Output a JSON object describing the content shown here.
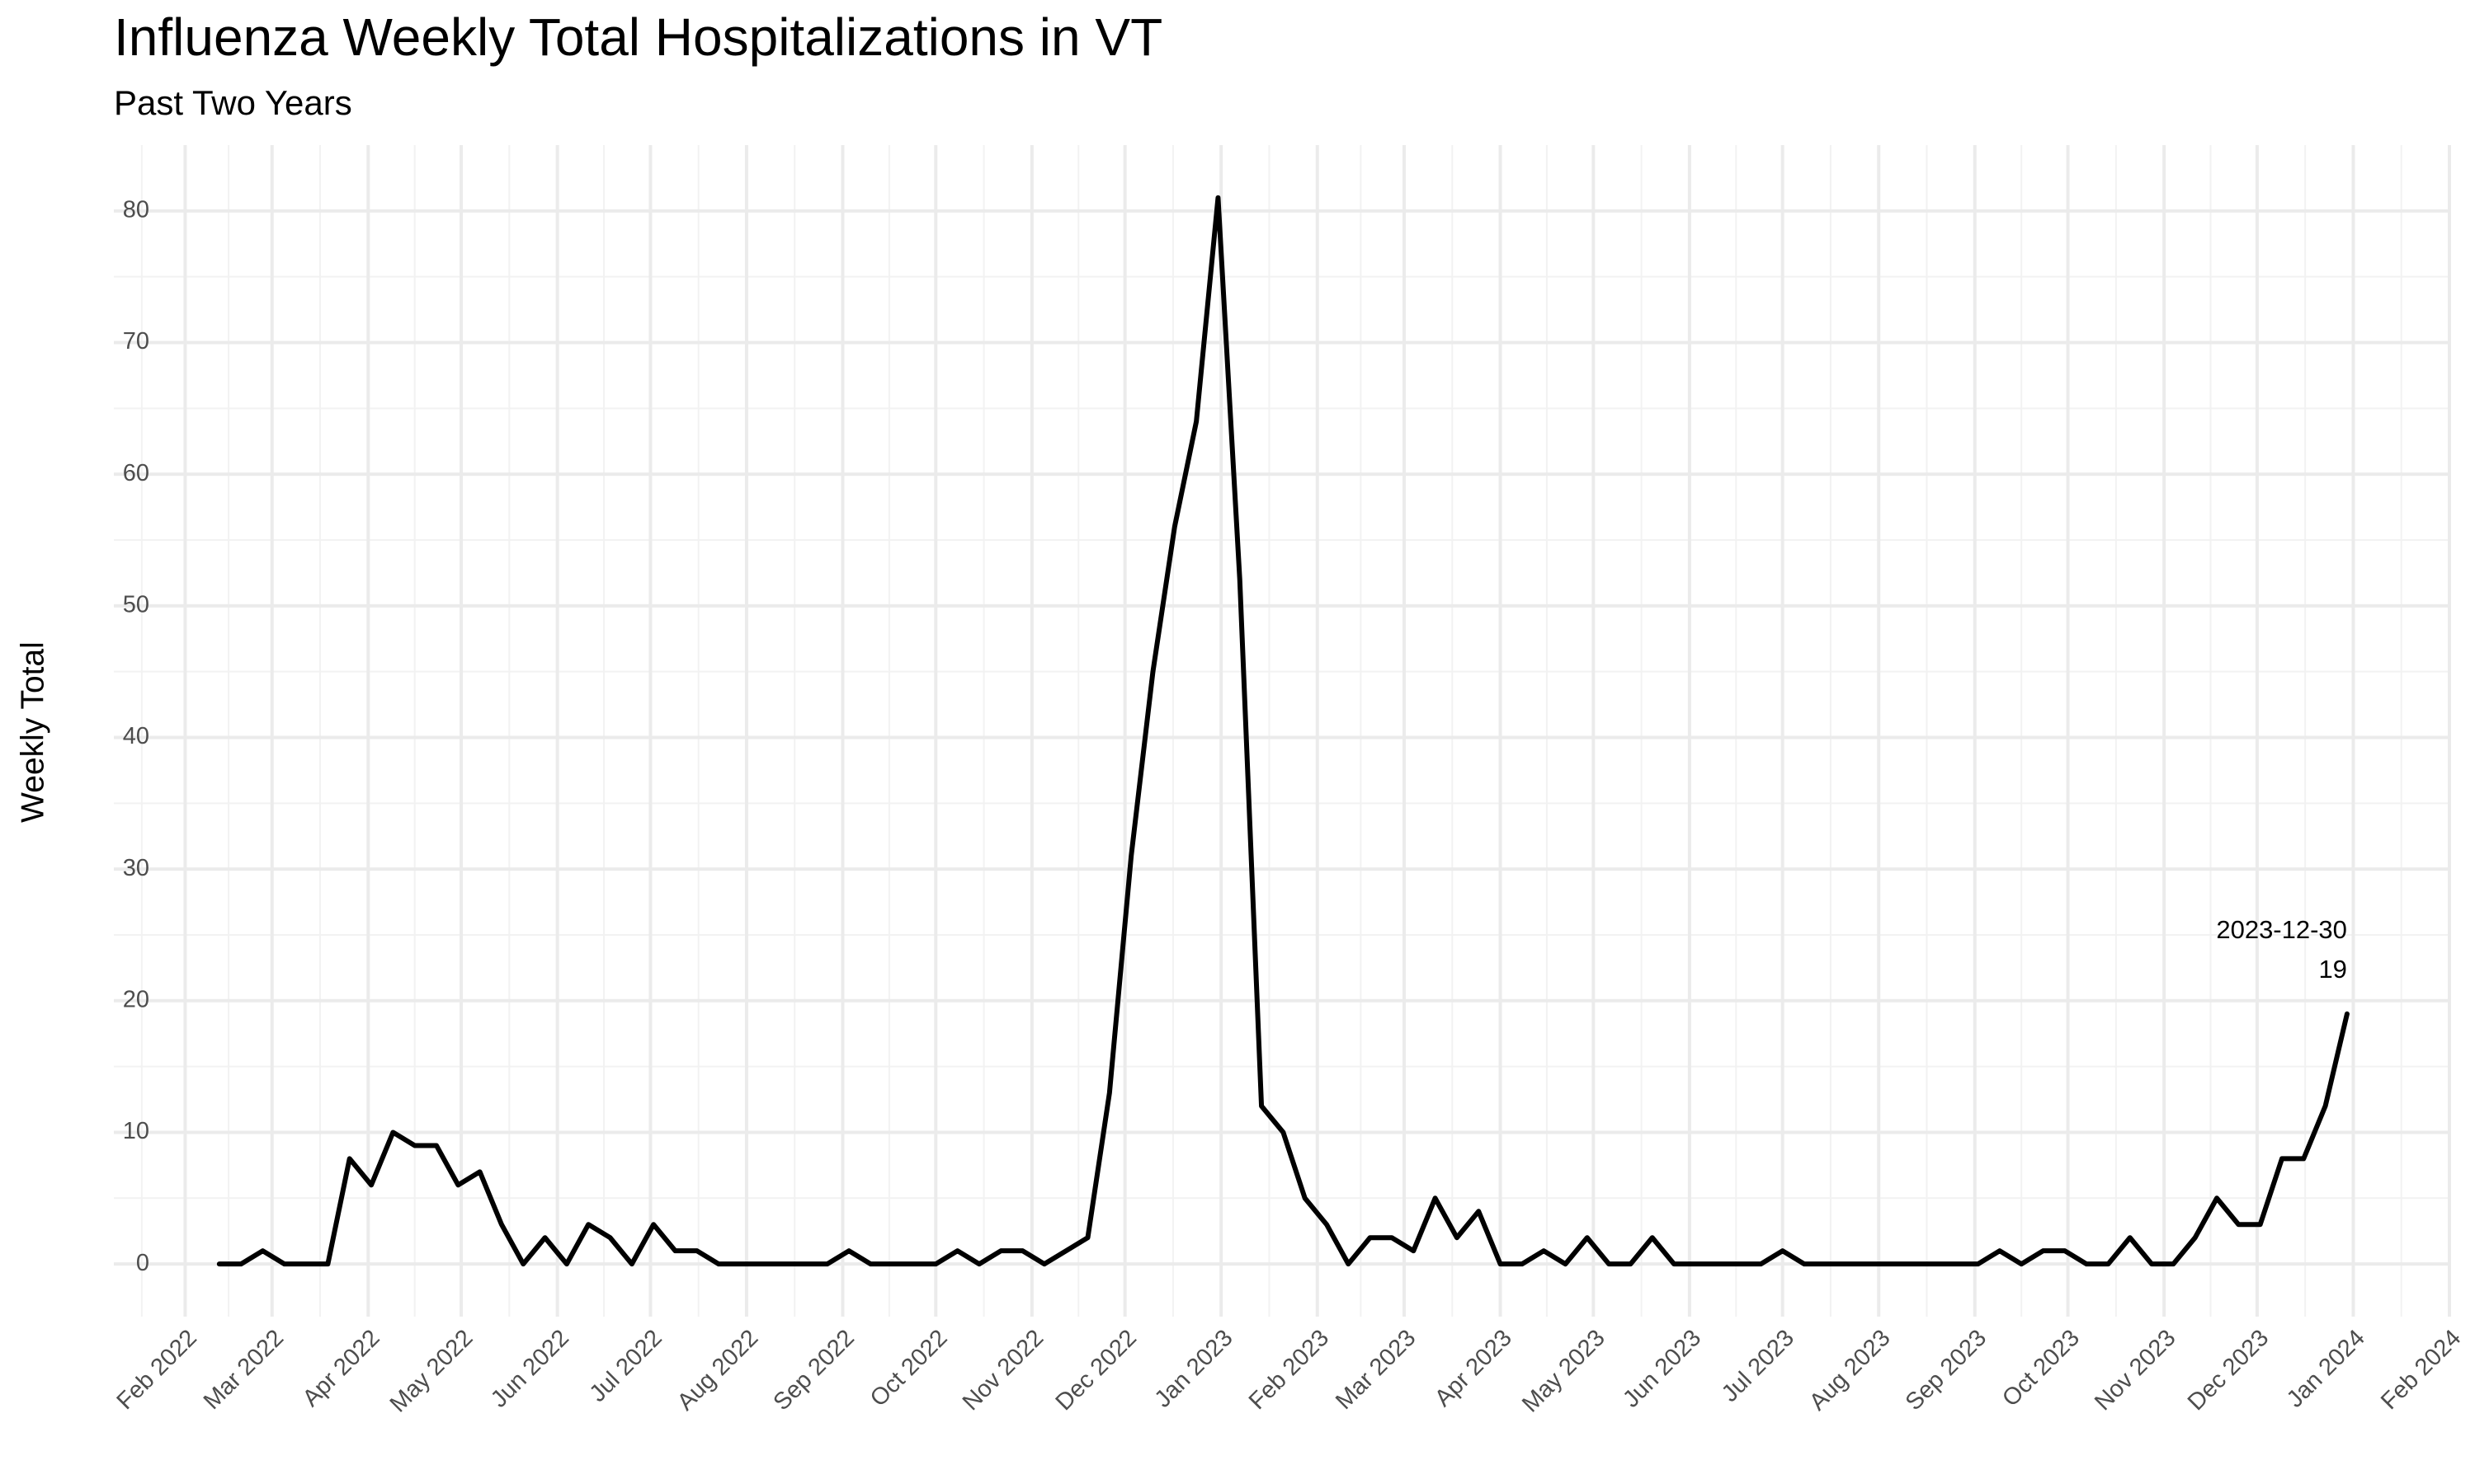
{
  "chart_data": {
    "type": "line",
    "title": "Influenza Weekly Total Hospitalizations in VT",
    "subtitle": "Past Two Years",
    "y_label": "Weekly Total",
    "x": [
      "2022-02-12",
      "2022-02-19",
      "2022-02-26",
      "2022-03-05",
      "2022-03-12",
      "2022-03-19",
      "2022-03-26",
      "2022-04-02",
      "2022-04-09",
      "2022-04-16",
      "2022-04-23",
      "2022-04-30",
      "2022-05-07",
      "2022-05-14",
      "2022-05-21",
      "2022-05-28",
      "2022-06-04",
      "2022-06-11",
      "2022-06-18",
      "2022-06-25",
      "2022-07-02",
      "2022-07-09",
      "2022-07-16",
      "2022-07-23",
      "2022-07-30",
      "2022-08-06",
      "2022-08-13",
      "2022-08-20",
      "2022-08-27",
      "2022-09-03",
      "2022-09-10",
      "2022-09-17",
      "2022-09-24",
      "2022-10-01",
      "2022-10-08",
      "2022-10-15",
      "2022-10-22",
      "2022-10-29",
      "2022-11-05",
      "2022-11-12",
      "2022-11-19",
      "2022-11-26",
      "2022-12-03",
      "2022-12-10",
      "2022-12-17",
      "2022-12-24",
      "2022-12-31",
      "2023-01-07",
      "2023-01-14",
      "2023-01-21",
      "2023-01-28",
      "2023-02-04",
      "2023-02-11",
      "2023-02-18",
      "2023-02-25",
      "2023-03-04",
      "2023-03-11",
      "2023-03-18",
      "2023-03-25",
      "2023-04-01",
      "2023-04-08",
      "2023-04-15",
      "2023-04-22",
      "2023-04-29",
      "2023-05-06",
      "2023-05-13",
      "2023-05-20",
      "2023-05-27",
      "2023-06-03",
      "2023-06-10",
      "2023-06-17",
      "2023-06-24",
      "2023-07-01",
      "2023-07-08",
      "2023-07-15",
      "2023-07-22",
      "2023-07-29",
      "2023-08-05",
      "2023-08-12",
      "2023-08-19",
      "2023-08-26",
      "2023-09-02",
      "2023-09-09",
      "2023-09-16",
      "2023-09-23",
      "2023-09-30",
      "2023-10-07",
      "2023-10-14",
      "2023-10-21",
      "2023-10-28",
      "2023-11-04",
      "2023-11-11",
      "2023-11-18",
      "2023-11-25",
      "2023-12-02",
      "2023-12-09",
      "2023-12-16",
      "2023-12-23",
      "2023-12-30"
    ],
    "series": [
      {
        "name": "Weekly Total",
        "color": "#000000",
        "values": [
          0,
          0,
          1,
          0,
          0,
          0,
          8,
          6,
          10,
          9,
          9,
          6,
          7,
          3,
          0,
          2,
          0,
          3,
          2,
          0,
          3,
          1,
          1,
          0,
          0,
          0,
          0,
          0,
          0,
          1,
          0,
          0,
          0,
          0,
          1,
          0,
          1,
          1,
          0,
          1,
          2,
          13,
          31,
          45,
          56,
          64,
          81,
          52,
          12,
          10,
          5,
          3,
          0,
          2,
          2,
          1,
          5,
          2,
          4,
          0,
          0,
          1,
          0,
          2,
          0,
          0,
          2,
          0,
          0,
          0,
          0,
          0,
          1,
          0,
          0,
          0,
          0,
          0,
          0,
          0,
          0,
          0,
          1,
          0,
          1,
          1,
          0,
          0,
          2,
          0,
          0,
          2,
          5,
          3,
          3,
          8,
          8,
          12,
          19
        ]
      }
    ],
    "xlim": [
      "2022-01-09",
      "2024-02-01"
    ],
    "xticks": [
      {
        "value": "2022-02-01",
        "label": "Feb 2022"
      },
      {
        "value": "2022-03-01",
        "label": "Mar 2022"
      },
      {
        "value": "2022-04-01",
        "label": "Apr 2022"
      },
      {
        "value": "2022-05-01",
        "label": "May 2022"
      },
      {
        "value": "2022-06-01",
        "label": "Jun 2022"
      },
      {
        "value": "2022-07-01",
        "label": "Jul 2022"
      },
      {
        "value": "2022-08-01",
        "label": "Aug 2022"
      },
      {
        "value": "2022-09-01",
        "label": "Sep 2022"
      },
      {
        "value": "2022-10-01",
        "label": "Oct 2022"
      },
      {
        "value": "2022-11-01",
        "label": "Nov 2022"
      },
      {
        "value": "2022-12-01",
        "label": "Dec 2022"
      },
      {
        "value": "2023-01-01",
        "label": "Jan 2023"
      },
      {
        "value": "2023-02-01",
        "label": "Feb 2023"
      },
      {
        "value": "2023-03-01",
        "label": "Mar 2023"
      },
      {
        "value": "2023-04-01",
        "label": "Apr 2023"
      },
      {
        "value": "2023-05-01",
        "label": "May 2023"
      },
      {
        "value": "2023-06-01",
        "label": "Jun 2023"
      },
      {
        "value": "2023-07-01",
        "label": "Jul 2023"
      },
      {
        "value": "2023-08-01",
        "label": "Aug 2023"
      },
      {
        "value": "2023-09-01",
        "label": "Sep 2023"
      },
      {
        "value": "2023-10-01",
        "label": "Oct 2023"
      },
      {
        "value": "2023-11-01",
        "label": "Nov 2023"
      },
      {
        "value": "2023-12-01",
        "label": "Dec 2023"
      },
      {
        "value": "2024-01-01",
        "label": "Jan 2024"
      },
      {
        "value": "2024-02-01",
        "label": "Feb 2024"
      }
    ],
    "ylim": [
      -4,
      85
    ],
    "yticks": [
      0,
      10,
      20,
      30,
      40,
      50,
      60,
      70,
      80
    ],
    "grid": true
  }
}
